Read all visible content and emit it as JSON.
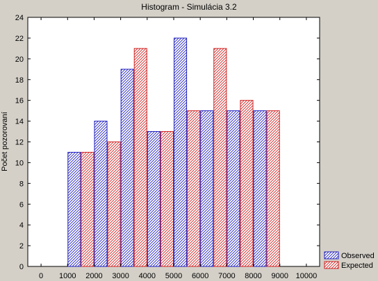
{
  "chart_data": {
    "type": "bar",
    "title": "Histogram - Simulácia 3.2",
    "xlabel": "",
    "ylabel": "Počet pozorovaní",
    "x_ticks": [
      0,
      1000,
      2000,
      3000,
      4000,
      5000,
      6000,
      7000,
      8000,
      9000,
      10000
    ],
    "xlim": [
      -500,
      10500
    ],
    "ylim": [
      0,
      24
    ],
    "y_ticks": [
      0,
      2,
      4,
      6,
      8,
      10,
      12,
      14,
      16,
      18,
      20,
      22,
      24
    ],
    "bins": [
      {
        "from": 1000,
        "to": 2000
      },
      {
        "from": 2000,
        "to": 3000
      },
      {
        "from": 3000,
        "to": 4000
      },
      {
        "from": 4000,
        "to": 5000
      },
      {
        "from": 5000,
        "to": 6000
      },
      {
        "from": 6000,
        "to": 7000
      },
      {
        "from": 7000,
        "to": 8000
      },
      {
        "from": 8000,
        "to": 9000
      }
    ],
    "series": [
      {
        "name": "Observed",
        "color": "#2020c0",
        "values": [
          11,
          14,
          19,
          13,
          22,
          15,
          15,
          15
        ]
      },
      {
        "name": "Expected",
        "color": "#d02020",
        "values": [
          11,
          12,
          21,
          13,
          15,
          21,
          16,
          15
        ]
      }
    ],
    "grid": false,
    "legend": "bottom-right"
  }
}
